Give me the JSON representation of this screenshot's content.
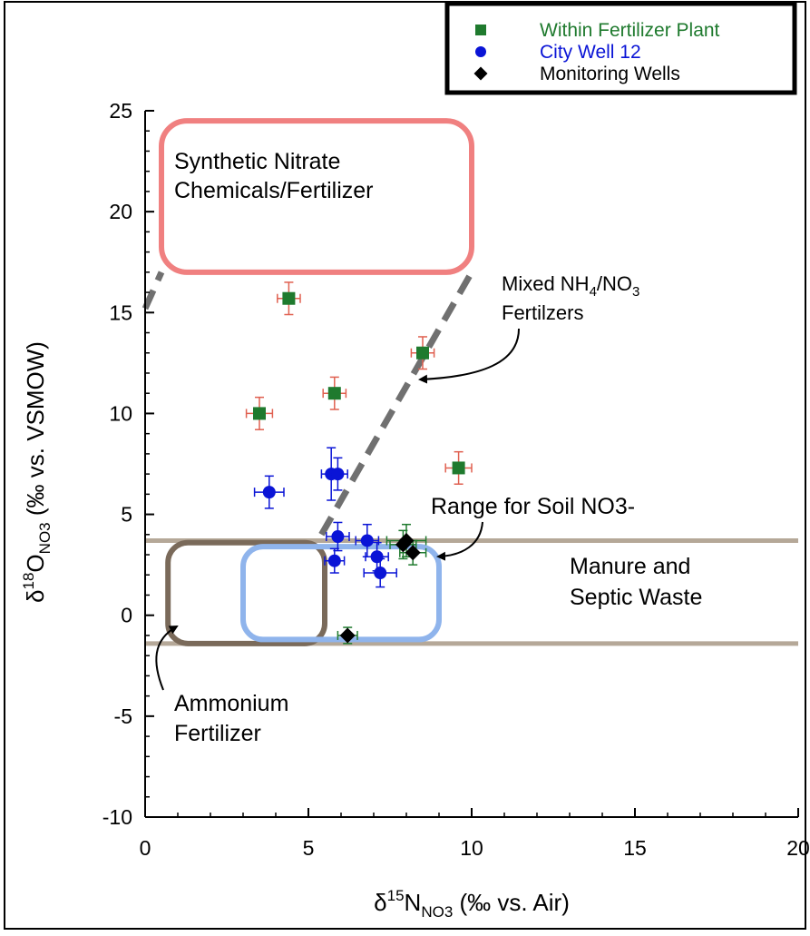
{
  "chart_data": {
    "type": "scatter",
    "xlim": [
      0,
      20
    ],
    "ylim": [
      -10,
      25
    ],
    "x_ticks": [
      0,
      5,
      10,
      15,
      20
    ],
    "y_ticks": [
      25,
      20,
      15,
      10,
      5,
      0,
      -5,
      -10
    ],
    "x_tick_labels": [
      "0",
      "5",
      "10",
      "15",
      "20"
    ],
    "y_tick_labels": [
      "25",
      "20",
      "15",
      "10",
      "5",
      "0",
      "-5",
      "-10"
    ],
    "xlabel": {
      "delta": "δ",
      "sup": "15",
      "main": "N",
      "sub": "NO3",
      "rest": " (‰ vs. Air)"
    },
    "ylabel": {
      "delta": "δ",
      "sup": "18",
      "main": "O",
      "sub": "NO3",
      "rest": " (‰ vs. VSMOW)"
    },
    "grid": false,
    "legend_position": "top-right",
    "series": [
      {
        "name": "Within Fertilizer Plant",
        "marker": "square",
        "color": "#1f7a2e",
        "errorbar_color": "#e06050",
        "points": [
          {
            "x": 4.4,
            "y": 15.7,
            "xerr": 0.35,
            "yerr": 0.8
          },
          {
            "x": 3.5,
            "y": 10.0,
            "xerr": 0.4,
            "yerr": 0.8
          },
          {
            "x": 5.8,
            "y": 11.0,
            "xerr": 0.35,
            "yerr": 0.8
          },
          {
            "x": 8.5,
            "y": 13.0,
            "xerr": 0.35,
            "yerr": 0.8
          },
          {
            "x": 9.6,
            "y": 7.3,
            "xerr": 0.4,
            "yerr": 0.8
          }
        ]
      },
      {
        "name": "City Well 12",
        "marker": "circle",
        "color": "#0a14d6",
        "errorbar_color": "#0a14d6",
        "points": [
          {
            "x": 3.8,
            "y": 6.1,
            "xerr": 0.45,
            "yerr": 0.8
          },
          {
            "x": 5.7,
            "y": 7.0,
            "xerr": 0.3,
            "yerr": 1.3
          },
          {
            "x": 5.9,
            "y": 7.0,
            "xerr": 0.3,
            "yerr": 0.8
          },
          {
            "x": 5.9,
            "y": 3.9,
            "xerr": 0.35,
            "yerr": 0.7
          },
          {
            "x": 6.8,
            "y": 3.7,
            "xerr": 0.35,
            "yerr": 0.8
          },
          {
            "x": 5.8,
            "y": 2.7,
            "xerr": 0.3,
            "yerr": 0.6
          },
          {
            "x": 7.1,
            "y": 2.9,
            "xerr": 0.35,
            "yerr": 0.7
          },
          {
            "x": 7.2,
            "y": 2.1,
            "xerr": 0.5,
            "yerr": 0.7
          }
        ]
      },
      {
        "name": "Monitoring Wells",
        "marker": "diamond",
        "color": "#000000",
        "errorbar_color": "#1f7a2e",
        "points": [
          {
            "x": 7.9,
            "y": 3.5,
            "xerr": 0.4,
            "yerr": 0.7
          },
          {
            "x": 8.0,
            "y": 3.7,
            "xerr": 0.6,
            "yerr": 0.8
          },
          {
            "x": 8.2,
            "y": 3.1,
            "xerr": 0.4,
            "yerr": 0.6
          },
          {
            "x": 6.2,
            "y": -1.0,
            "xerr": 0.3,
            "yerr": 0.4
          }
        ]
      }
    ],
    "regions": [
      {
        "name": "Synthetic Nitrate Chemicals/Fertilizer",
        "shape": "rounded-box",
        "stroke": "#f08080",
        "x": [
          0.5,
          10.0
        ],
        "y": [
          17.0,
          24.5
        ]
      },
      {
        "name": "Ammonium Fertilizer",
        "shape": "rounded-box",
        "stroke": "#7a6a5a",
        "x": [
          0.7,
          5.5
        ],
        "y": [
          -1.4,
          3.6
        ]
      },
      {
        "name": "Range for Soil NO3-",
        "shape": "rounded-box",
        "stroke": "#8fb4ec",
        "x": [
          3.0,
          9.0
        ],
        "y": [
          -1.2,
          3.4
        ]
      },
      {
        "name": "Manure and Septic Waste",
        "shape": "band",
        "stroke": "#b5a898",
        "y": [
          -1.4,
          3.7
        ]
      }
    ],
    "lines": [
      {
        "name": "mixed-line-upper",
        "style": "dashed",
        "color": "#707070",
        "x": [
          5.4,
          10.0
        ],
        "y": [
          4.0,
          17.0
        ]
      },
      {
        "name": "mixed-line-left",
        "style": "dashed",
        "color": "#707070",
        "x": [
          0.0,
          0.5
        ],
        "y": [
          15.2,
          17.0
        ]
      }
    ],
    "labels": {
      "synthetic_line1": "Synthetic Nitrate",
      "synthetic_line2": "Chemicals/Fertilizer",
      "mixed_line1_pre": "Mixed NH",
      "mixed_line1_sub1": "4",
      "mixed_line1_mid": "/NO",
      "mixed_line1_sub2": "3",
      "mixed_line2": "Fertilzers",
      "soil": "Range for Soil NO3-",
      "manure_line1": "Manure and",
      "manure_line2": "Septic Waste",
      "ammonium_line1": "Ammonium",
      "ammonium_line2": "Fertilizer"
    },
    "legend": {
      "items": [
        {
          "label": "Within Fertilizer Plant",
          "marker": "square",
          "color": "#1f7a2e",
          "text_color": "#1f7a2e"
        },
        {
          "label": "City Well 12",
          "marker": "circle",
          "color": "#0a14d6",
          "text_color": "#0a14d6"
        },
        {
          "label": "Monitoring Wells",
          "marker": "diamond",
          "color": "#000000",
          "text_color": "#000000"
        }
      ]
    }
  }
}
